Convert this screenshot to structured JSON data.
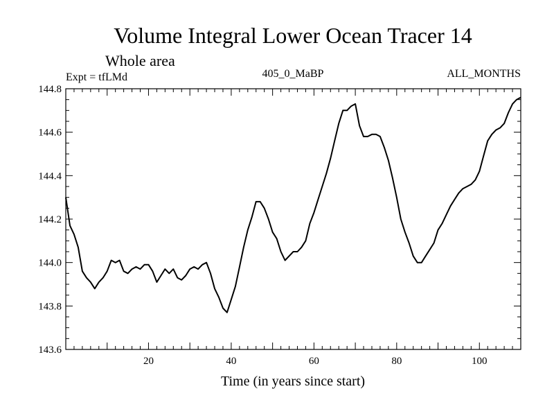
{
  "chart_data": {
    "type": "line",
    "title": "Volume Integral Lower Ocean Tracer 14",
    "subtitle": "Whole area",
    "expt_label": "Expt = tfLMd",
    "period_label": "405_0_MaBP",
    "months_label": "ALL_MONTHS",
    "xlabel": "Time (in years since start)",
    "ylabel": "",
    "xlim": [
      0,
      110
    ],
    "ylim": [
      143.6,
      144.8
    ],
    "x_ticks": [
      20,
      40,
      60,
      80,
      100
    ],
    "y_ticks": [
      143.6,
      143.8,
      144.0,
      144.2,
      144.4,
      144.6,
      144.8
    ],
    "y_tick_labels": [
      "143.6",
      "143.8",
      "144.0",
      "144.2",
      "144.4",
      "144.6",
      "144.8"
    ],
    "series": [
      {
        "name": "tfLMd",
        "color": "#000000",
        "x": [
          0,
          1,
          2,
          3,
          4,
          5,
          6,
          7,
          8,
          9,
          10,
          11,
          12,
          13,
          14,
          15,
          16,
          17,
          18,
          19,
          20,
          21,
          22,
          23,
          24,
          25,
          26,
          27,
          28,
          29,
          30,
          31,
          32,
          33,
          34,
          35,
          36,
          37,
          38,
          39,
          40,
          41,
          42,
          43,
          44,
          45,
          46,
          47,
          48,
          49,
          50,
          51,
          52,
          53,
          54,
          55,
          56,
          57,
          58,
          59,
          60,
          61,
          62,
          63,
          64,
          65,
          66,
          67,
          68,
          69,
          70,
          71,
          72,
          73,
          74,
          75,
          76,
          77,
          78,
          79,
          80,
          81,
          82,
          83,
          84,
          85,
          86,
          87,
          88,
          89,
          90,
          91,
          92,
          93,
          94,
          95,
          96,
          97,
          98,
          99,
          100,
          101,
          102,
          103,
          104,
          105,
          106,
          107,
          108,
          109,
          110
        ],
        "values": [
          144.3,
          144.17,
          144.13,
          144.07,
          143.96,
          143.93,
          143.91,
          143.88,
          143.91,
          143.93,
          143.96,
          144.01,
          144.0,
          144.01,
          143.96,
          143.95,
          143.97,
          143.98,
          143.97,
          143.99,
          143.99,
          143.96,
          143.91,
          143.94,
          143.97,
          143.95,
          143.97,
          143.93,
          143.92,
          143.94,
          143.97,
          143.98,
          143.97,
          143.99,
          144.0,
          143.95,
          143.88,
          143.84,
          143.79,
          143.77,
          143.83,
          143.89,
          143.98,
          144.07,
          144.15,
          144.21,
          144.28,
          144.28,
          144.25,
          144.2,
          144.14,
          144.11,
          144.05,
          144.01,
          144.03,
          144.05,
          144.05,
          144.07,
          144.1,
          144.18,
          144.23,
          144.29,
          144.35,
          144.41,
          144.48,
          144.56,
          144.64,
          144.7,
          144.7,
          144.72,
          144.73,
          144.63,
          144.58,
          144.58,
          144.59,
          144.59,
          144.58,
          144.53,
          144.47,
          144.39,
          144.3,
          144.2,
          144.14,
          144.09,
          144.03,
          144.0,
          144.0,
          144.03,
          144.06,
          144.09,
          144.15,
          144.18,
          144.22,
          144.26,
          144.29,
          144.32,
          144.34,
          144.35,
          144.36,
          144.38,
          144.42,
          144.49,
          144.56,
          144.59,
          144.61,
          144.62,
          144.64,
          144.69,
          144.73,
          144.75,
          144.76
        ]
      }
    ]
  }
}
